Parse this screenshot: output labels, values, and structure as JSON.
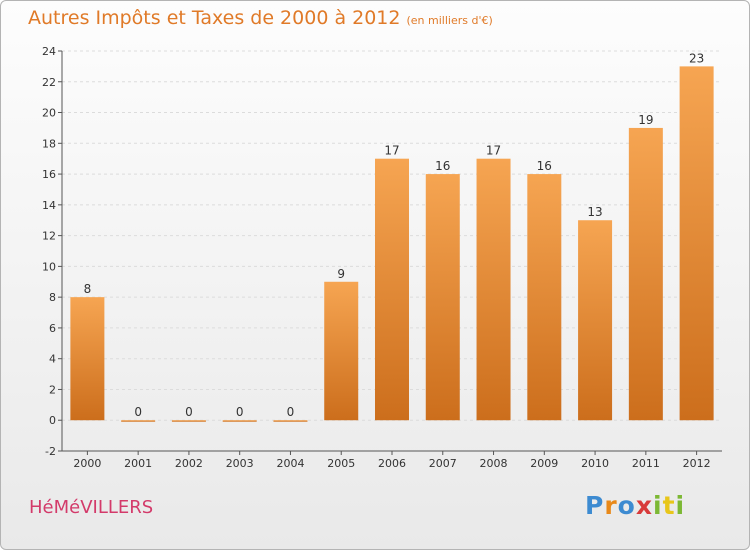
{
  "header": {
    "title": "Autres Impôts et Taxes de 2000 à 2012",
    "unit": "(en milliers d'€)"
  },
  "footer": {
    "commune": "HéMéVILLERS",
    "brand_letters": [
      "P",
      "r",
      "o",
      "x",
      "i",
      "t",
      "i"
    ]
  },
  "colors": {
    "bar_top": "#f6a552",
    "bar_bottom": "#cc6e1c",
    "title": "#e07a28",
    "commune": "#d33a6a",
    "grid": "#dcdcdc",
    "axis": "#555555"
  },
  "chart_data": {
    "type": "bar",
    "title": "Autres Impôts et Taxes de 2000 à 2012",
    "subtitle": "(en milliers d'€)",
    "xlabel": "",
    "ylabel": "",
    "categories": [
      "2000",
      "2001",
      "2002",
      "2003",
      "2004",
      "2005",
      "2006",
      "2007",
      "2008",
      "2009",
      "2010",
      "2011",
      "2012"
    ],
    "values": [
      8,
      0,
      0,
      0,
      0,
      9,
      17,
      16,
      17,
      16,
      13,
      19,
      23
    ],
    "ylim": [
      -2,
      24
    ],
    "yticks": [
      -2,
      0,
      2,
      4,
      6,
      8,
      10,
      12,
      14,
      16,
      18,
      20,
      22,
      24
    ],
    "grid": true,
    "legend": "none"
  }
}
